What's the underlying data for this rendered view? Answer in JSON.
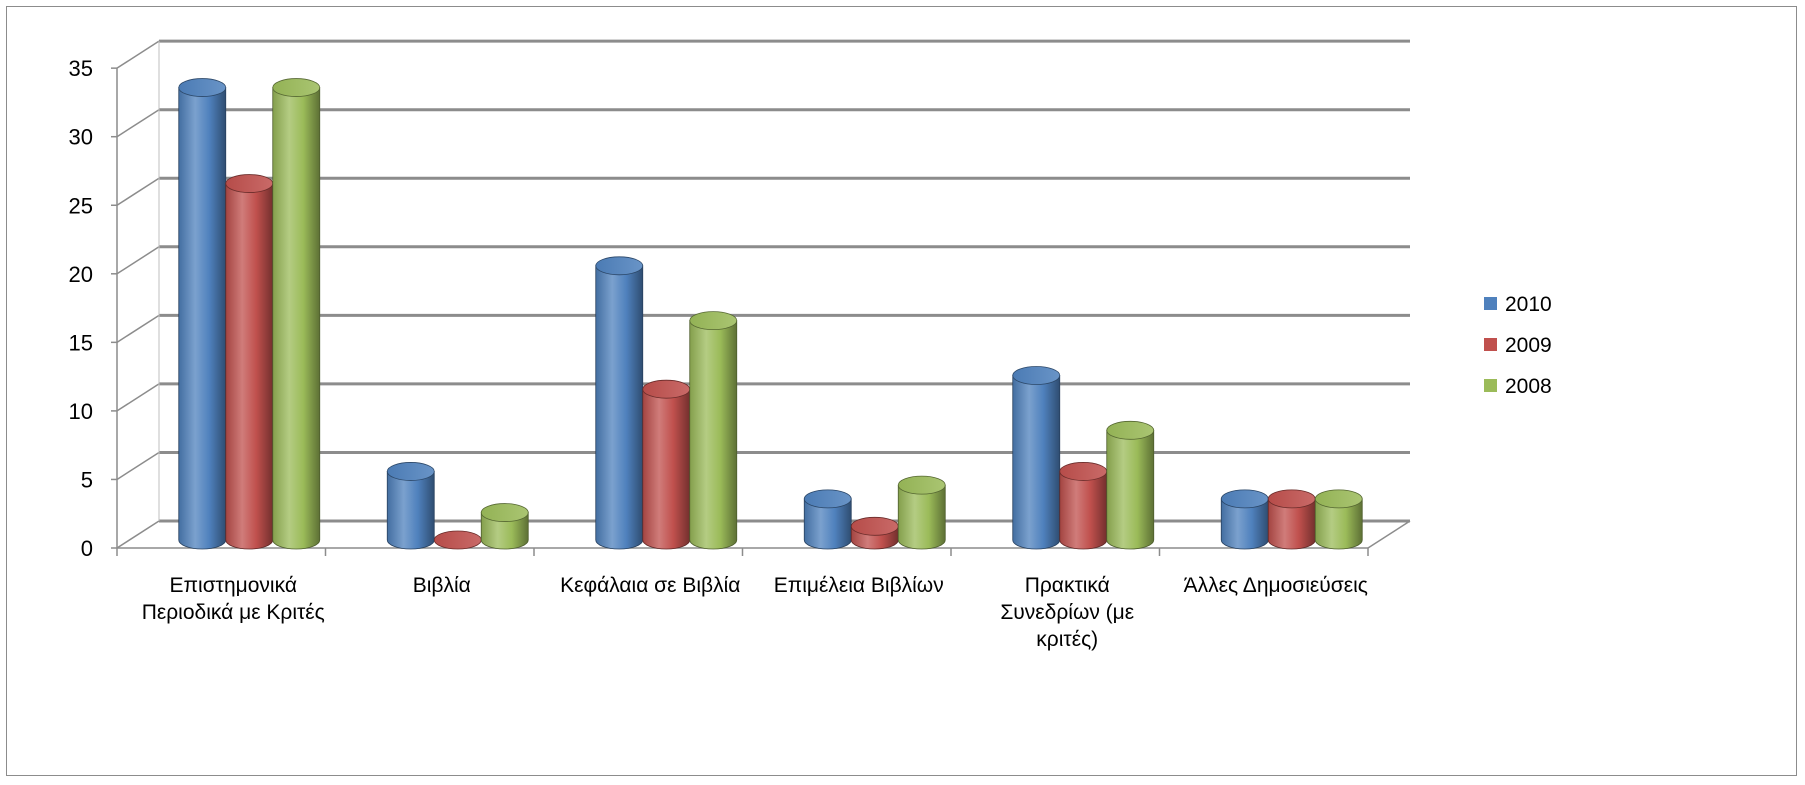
{
  "chart_data": {
    "type": "bar",
    "title": "",
    "xlabel": "",
    "ylabel": "",
    "ylim": [
      0,
      35
    ],
    "yticks": [
      0,
      5,
      10,
      15,
      20,
      25,
      30,
      35
    ],
    "grid": true,
    "legend_position": "right",
    "categories": [
      [
        "Επιστημονικά",
        "Περιοδικά με Κριτές"
      ],
      [
        "Βιβλία"
      ],
      [
        "Κεφάλαια σε Βιβλία"
      ],
      [
        "Επιμέλεια Βιβλίων"
      ],
      [
        "Πρακτικά",
        "Συνεδρίων (με",
        "κριτές)"
      ],
      [
        "Άλλες Δημοσιεύσεις"
      ]
    ],
    "series": [
      {
        "name": "2010",
        "color": "#4f81bd",
        "values": [
          33,
          5,
          20,
          3,
          12,
          3
        ]
      },
      {
        "name": "2009",
        "color": "#c0504d",
        "values": [
          26,
          0,
          11,
          1,
          5,
          3
        ]
      },
      {
        "name": "2008",
        "color": "#9bbb59",
        "values": [
          33,
          2,
          16,
          4,
          8,
          3
        ]
      }
    ]
  }
}
